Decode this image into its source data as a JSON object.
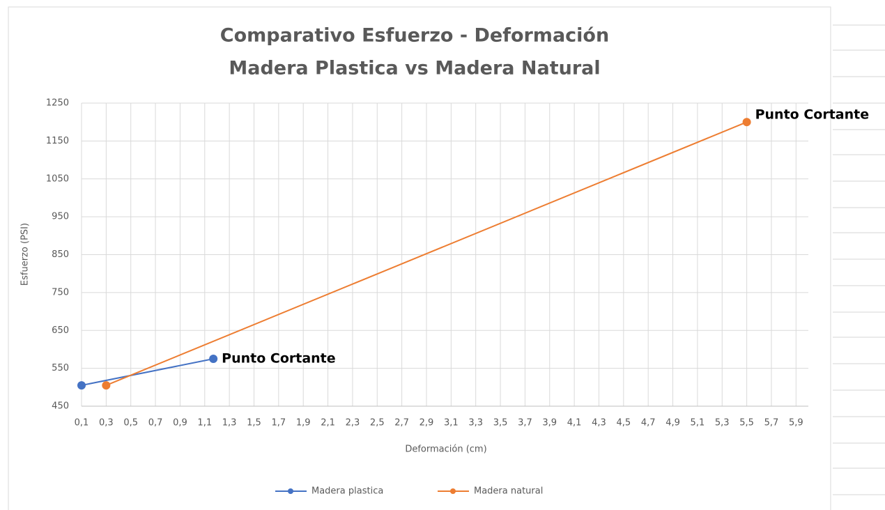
{
  "chart_data": {
    "type": "line",
    "title": [
      "Comparativo Esfuerzo - Deformación",
      "Madera Plastica vs Madera Natural"
    ],
    "x_label": "Deformación (cm)",
    "y_label": "Esfuerzo (PSI)",
    "series": [
      {
        "name": "Madera plastica",
        "color": "#4472c4",
        "x": [
          0.1,
          1.17
        ],
        "values": [
          505,
          575
        ],
        "point_labels": [
          null,
          "Punto Cortante"
        ]
      },
      {
        "name": "Madera natural",
        "color": "#ed7d31",
        "x": [
          0.3,
          5.5
        ],
        "values": [
          505,
          1200
        ],
        "point_labels": [
          null,
          "Punto Cortante"
        ]
      }
    ],
    "xlim": [
      0.1,
      6.0
    ],
    "xticks": [
      {
        "value": 0.1,
        "label": "0,1"
      },
      {
        "value": 0.3,
        "label": "0,3"
      },
      {
        "value": 0.5,
        "label": "0,5"
      },
      {
        "value": 0.7,
        "label": "0,7"
      },
      {
        "value": 0.9,
        "label": "0,9"
      },
      {
        "value": 1.1,
        "label": "1,1"
      },
      {
        "value": 1.3,
        "label": "1,3"
      },
      {
        "value": 1.5,
        "label": "1,5"
      },
      {
        "value": 1.7,
        "label": "1,7"
      },
      {
        "value": 1.9,
        "label": "1,9"
      },
      {
        "value": 2.1,
        "label": "2,1"
      },
      {
        "value": 2.3,
        "label": "2,3"
      },
      {
        "value": 2.5,
        "label": "2,5"
      },
      {
        "value": 2.7,
        "label": "2,7"
      },
      {
        "value": 2.9,
        "label": "2,9"
      },
      {
        "value": 3.1,
        "label": "3,1"
      },
      {
        "value": 3.3,
        "label": "3,3"
      },
      {
        "value": 3.5,
        "label": "3,5"
      },
      {
        "value": 3.7,
        "label": "3,7"
      },
      {
        "value": 3.9,
        "label": "3,9"
      },
      {
        "value": 4.1,
        "label": "4,1"
      },
      {
        "value": 4.3,
        "label": "4,3"
      },
      {
        "value": 4.5,
        "label": "4,5"
      },
      {
        "value": 4.7,
        "label": "4,7"
      },
      {
        "value": 4.9,
        "label": "4,9"
      },
      {
        "value": 5.1,
        "label": "5,1"
      },
      {
        "value": 5.3,
        "label": "5,3"
      },
      {
        "value": 5.5,
        "label": "5,5"
      },
      {
        "value": 5.7,
        "label": "5,7"
      },
      {
        "value": 5.9,
        "label": "5,9"
      }
    ],
    "ylim": [
      450,
      1250
    ],
    "yticks": [
      450,
      550,
      650,
      750,
      850,
      950,
      1050,
      1150,
      1250
    ],
    "grid": true,
    "legend": "bottom"
  }
}
